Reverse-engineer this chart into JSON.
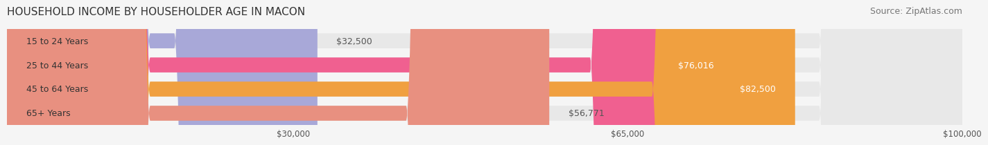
{
  "title": "HOUSEHOLD INCOME BY HOUSEHOLDER AGE IN MACON",
  "source": "Source: ZipAtlas.com",
  "categories": [
    "15 to 24 Years",
    "25 to 44 Years",
    "45 to 64 Years",
    "65+ Years"
  ],
  "values": [
    32500,
    76016,
    82500,
    56771
  ],
  "bar_colors": [
    "#a8a8d8",
    "#f06090",
    "#f0a040",
    "#e89080"
  ],
  "bar_bg_color": "#e8e8e8",
  "value_labels": [
    "$32,500",
    "$76,016",
    "$82,500",
    "$56,771"
  ],
  "label_colors": [
    "#555555",
    "#ffffff",
    "#ffffff",
    "#555555"
  ],
  "xticks": [
    0,
    30000,
    65000,
    100000
  ],
  "xtick_labels": [
    "",
    "$30,000",
    "$65,000",
    "$100,000"
  ],
  "xmax": 100000,
  "background_color": "#f5f5f5",
  "title_fontsize": 11,
  "source_fontsize": 9
}
